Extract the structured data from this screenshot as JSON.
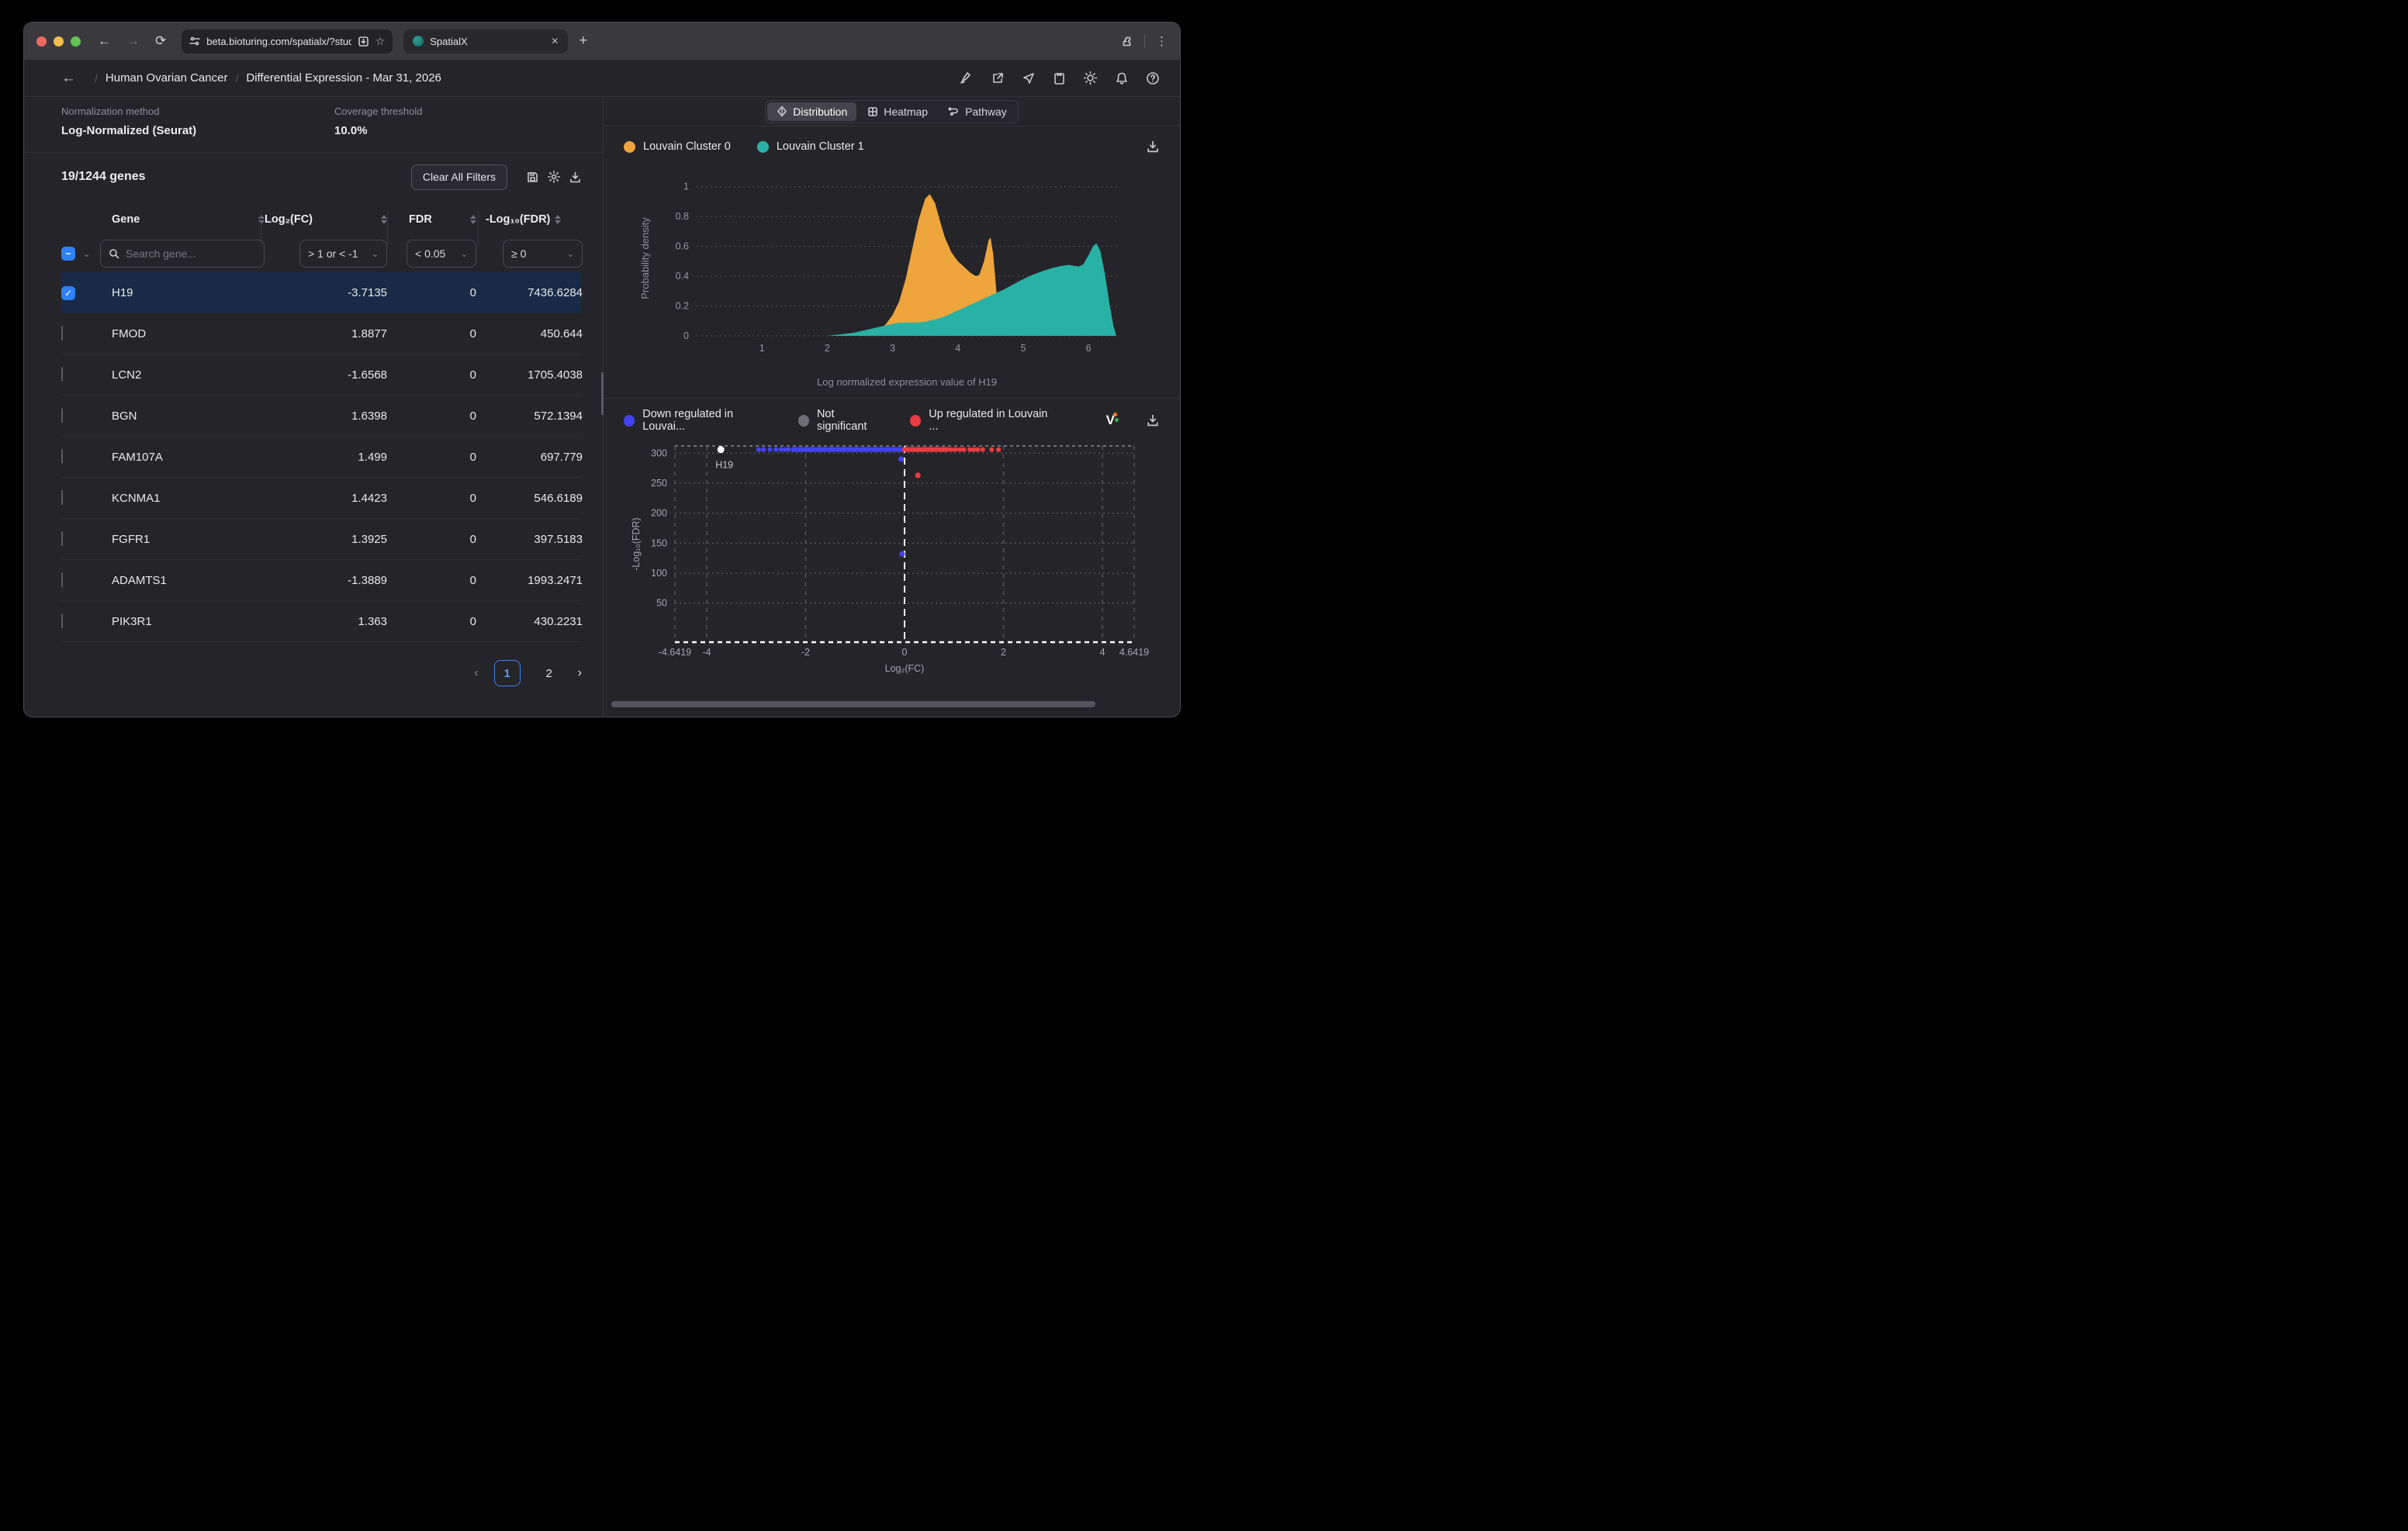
{
  "browser": {
    "url": "beta.bioturing.com/spatialx/?study_i...",
    "tab_title": "SpatialX",
    "new_tab_label": "+"
  },
  "header": {
    "breadcrumb_1": "Human Ovarian Cancer",
    "breadcrumb_2": "Differential Expression - Mar 31, 2026"
  },
  "left_panel": {
    "info": {
      "normalization_label": "Normalization method",
      "normalization_value": "Log-Normalized (Seurat)",
      "coverage_label": "Coverage threshold",
      "coverage_value": "10.0%"
    },
    "toolbar": {
      "gene_count": "19/1244 genes",
      "clear_filters_label": "Clear All Filters"
    },
    "table": {
      "columns": [
        "Gene",
        "Log₂(FC)",
        "FDR",
        "-Log₁₀(FDR)"
      ],
      "search_placeholder": "Search gene...",
      "filters": [
        "> 1 or < -1",
        "< 0.05",
        "≥ 0"
      ],
      "rows": [
        {
          "gene": "H19",
          "log2fc": "-3.7135",
          "fdr": "0",
          "neglog10fdr": "7436.6284",
          "selected": true
        },
        {
          "gene": "FMOD",
          "log2fc": "1.8877",
          "fdr": "0",
          "neglog10fdr": "450.644",
          "selected": false
        },
        {
          "gene": "LCN2",
          "log2fc": "-1.6568",
          "fdr": "0",
          "neglog10fdr": "1705.4038",
          "selected": false
        },
        {
          "gene": "BGN",
          "log2fc": "1.6398",
          "fdr": "0",
          "neglog10fdr": "572.1394",
          "selected": false
        },
        {
          "gene": "FAM107A",
          "log2fc": "1.499",
          "fdr": "0",
          "neglog10fdr": "697.779",
          "selected": false
        },
        {
          "gene": "KCNMA1",
          "log2fc": "1.4423",
          "fdr": "0",
          "neglog10fdr": "546.6189",
          "selected": false
        },
        {
          "gene": "FGFR1",
          "log2fc": "1.3925",
          "fdr": "0",
          "neglog10fdr": "397.5183",
          "selected": false
        },
        {
          "gene": "ADAMTS1",
          "log2fc": "-1.3889",
          "fdr": "0",
          "neglog10fdr": "1993.2471",
          "selected": false
        },
        {
          "gene": "PIK3R1",
          "log2fc": "1.363",
          "fdr": "0",
          "neglog10fdr": "430.2231",
          "selected": false
        }
      ]
    },
    "pagination": {
      "pages": [
        "1",
        "2"
      ],
      "active": "1"
    }
  },
  "right_panel": {
    "tabs": [
      {
        "label": "Distribution",
        "active": true
      },
      {
        "label": "Heatmap",
        "active": false
      },
      {
        "label": "Pathway",
        "active": false
      }
    ]
  },
  "chart_data": [
    {
      "type": "area",
      "title": "",
      "xlabel": "Log normalized expression value of H19",
      "ylabel": "Probability density",
      "xlim": [
        0,
        6.45
      ],
      "ylim": [
        0,
        1.04
      ],
      "xticks": [
        1,
        2,
        3,
        4,
        5,
        6
      ],
      "yticks": [
        0,
        0.2,
        0.4,
        0.6,
        0.8,
        1
      ],
      "grid": "dashed-horizontal",
      "legend_position": "top-left",
      "series": [
        {
          "name": "Louvain Cluster 0",
          "color": "#eda53c",
          "x": [
            2.5,
            2.65,
            2.8,
            2.9,
            3.0,
            3.1,
            3.2,
            3.3,
            3.4,
            3.5,
            3.57,
            3.65,
            3.72,
            3.8,
            3.9,
            4.0,
            4.1,
            4.2,
            4.28,
            4.33,
            4.4,
            4.47,
            4.5,
            4.54,
            4.58,
            4.62,
            4.66,
            4.68
          ],
          "y": [
            0,
            0.01,
            0.04,
            0.08,
            0.14,
            0.23,
            0.38,
            0.58,
            0.78,
            0.92,
            0.95,
            0.89,
            0.78,
            0.66,
            0.56,
            0.5,
            0.46,
            0.42,
            0.4,
            0.41,
            0.5,
            0.64,
            0.66,
            0.55,
            0.35,
            0.14,
            0.02,
            0
          ]
        },
        {
          "name": "Louvain Cluster 1",
          "color": "#28b2a6",
          "x": [
            2.0,
            2.2,
            2.4,
            2.55,
            2.7,
            2.85,
            3.0,
            3.1,
            3.2,
            3.35,
            3.5,
            3.65,
            3.8,
            3.95,
            4.1,
            4.25,
            4.4,
            4.55,
            4.7,
            4.85,
            5.0,
            5.15,
            5.3,
            5.45,
            5.6,
            5.7,
            5.78,
            5.85,
            5.92,
            6.0,
            6.07,
            6.12,
            6.18,
            6.25,
            6.32,
            6.38,
            6.42
          ],
          "y": [
            0,
            0.01,
            0.02,
            0.035,
            0.05,
            0.065,
            0.08,
            0.088,
            0.09,
            0.088,
            0.095,
            0.11,
            0.13,
            0.16,
            0.19,
            0.22,
            0.25,
            0.28,
            0.31,
            0.345,
            0.38,
            0.41,
            0.435,
            0.455,
            0.47,
            0.475,
            0.47,
            0.465,
            0.48,
            0.54,
            0.6,
            0.62,
            0.57,
            0.42,
            0.22,
            0.07,
            0.01
          ]
        }
      ]
    },
    {
      "type": "scatter",
      "title": "",
      "xlabel": "Log₂(FC)",
      "ylabel": "-Log₁₀(FDR)",
      "xlim": [
        -4.6419,
        4.6419
      ],
      "ylim": [
        -15,
        312
      ],
      "xticks": [
        -4.6419,
        -4,
        -2,
        0,
        2,
        4,
        4.6419
      ],
      "yticks": [
        50,
        100,
        150,
        200,
        250,
        300
      ],
      "grid": "dashed",
      "threshold_line_x": 0,
      "series": [
        {
          "name": "Down regulated in Louvai...",
          "color": "#4242f0",
          "points": [
            [
              -0.07,
              290
            ],
            [
              -0.05,
              132
            ]
          ]
        },
        {
          "name": "Not significant",
          "color": "#6e6e74",
          "points": []
        },
        {
          "name": "Up regulated in Louvain ...",
          "color": "#e93d41",
          "points": [
            [
              0.27,
              263
            ]
          ]
        }
      ],
      "highlight": {
        "label": "H19",
        "x": -3.7135,
        "y": 306
      },
      "cap_band": {
        "y": 306,
        "blue_dense_range": [
          -2.25,
          0
        ],
        "blue_sparse_x": [
          -2.95,
          -2.85,
          -2.72,
          -2.6,
          -2.5,
          -2.42,
          -2.35
        ],
        "red_dense_range": [
          0,
          0.88
        ],
        "red_sparse_x": [
          0.95,
          1.03,
          1.12,
          1.2,
          1.32,
          1.4,
          1.48,
          1.58,
          1.76,
          1.9
        ]
      }
    }
  ]
}
